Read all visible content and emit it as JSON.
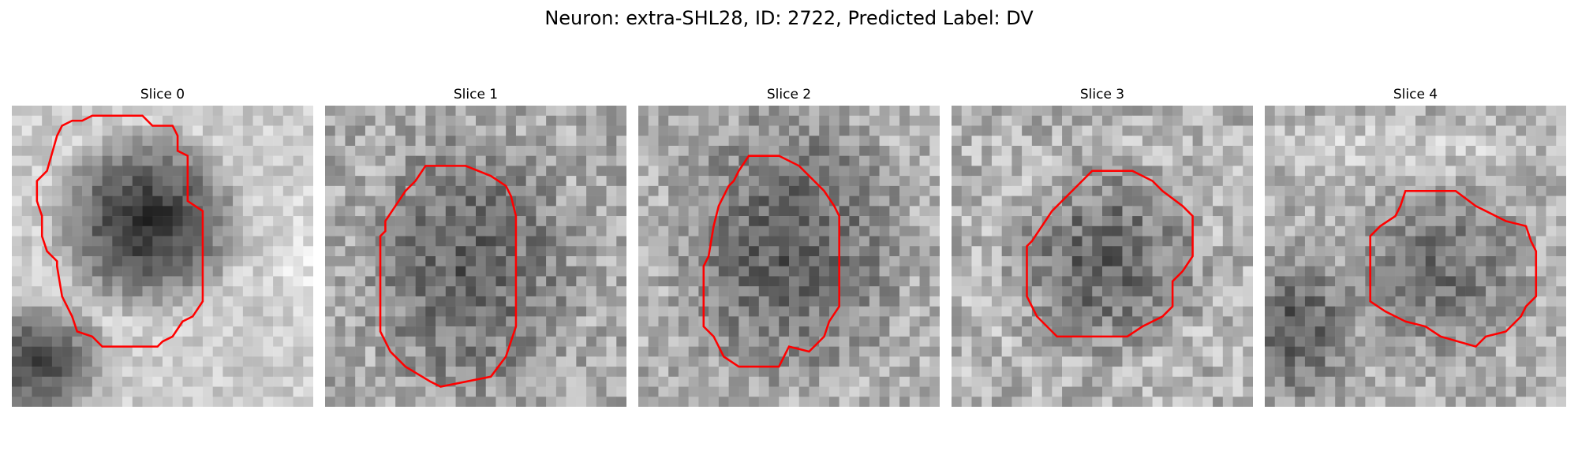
{
  "figure": {
    "title": "Neuron: extra-SHL28, ID: 2722, Predicted Label: DV"
  },
  "panels": [
    {
      "title": "Slice 0"
    },
    {
      "title": "Slice 1"
    },
    {
      "title": "Slice 2"
    },
    {
      "title": "Slice 3"
    },
    {
      "title": "Slice 4"
    }
  ],
  "colors": {
    "contour": "#ff0000",
    "background": "#ffffff"
  }
}
